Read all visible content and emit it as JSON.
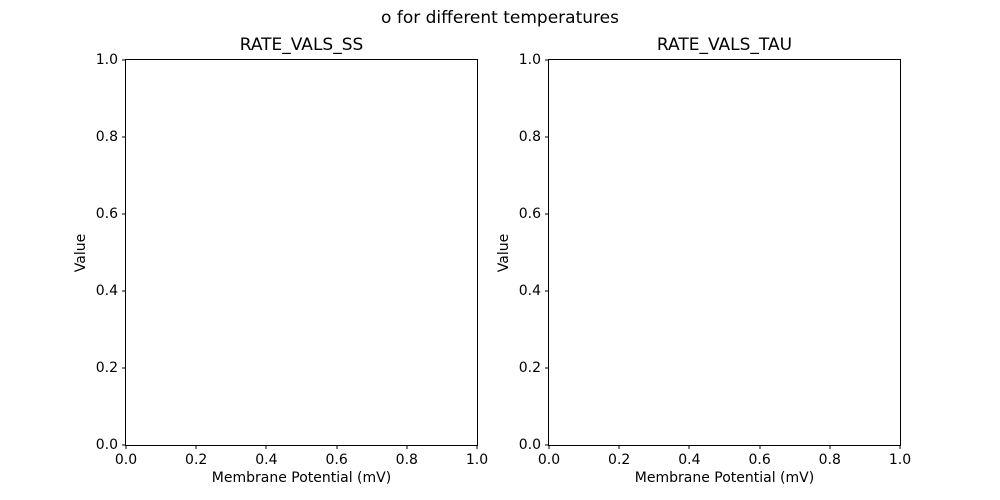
{
  "figure": {
    "suptitle": "o for different temperatures"
  },
  "colors": {
    "background": "#ffffff",
    "text": "#000000",
    "spine": "#000000"
  },
  "chart_data": [
    {
      "type": "line",
      "title": "RATE_VALS_SS",
      "xlabel": "Membrane Potential (mV)",
      "ylabel": "Value",
      "xlim": [
        0.0,
        1.0
      ],
      "ylim": [
        0.0,
        1.0
      ],
      "xtick_values": [
        0.0,
        0.2,
        0.4,
        0.6,
        0.8,
        1.0
      ],
      "xtick_labels": [
        "0.0",
        "0.2",
        "0.4",
        "0.6",
        "0.8",
        "1.0"
      ],
      "ytick_values": [
        0.0,
        0.2,
        0.4,
        0.6,
        0.8,
        1.0
      ],
      "ytick_labels": [
        "0.0",
        "0.2",
        "0.4",
        "0.6",
        "0.8",
        "1.0"
      ],
      "grid": false,
      "legend": null,
      "series": []
    },
    {
      "type": "line",
      "title": "RATE_VALS_TAU",
      "xlabel": "Membrane Potential (mV)",
      "ylabel": "Value",
      "xlim": [
        0.0,
        1.0
      ],
      "ylim": [
        0.0,
        1.0
      ],
      "xtick_values": [
        0.0,
        0.2,
        0.4,
        0.6,
        0.8,
        1.0
      ],
      "xtick_labels": [
        "0.0",
        "0.2",
        "0.4",
        "0.6",
        "0.8",
        "1.0"
      ],
      "ytick_values": [
        0.0,
        0.2,
        0.4,
        0.6,
        0.8,
        1.0
      ],
      "ytick_labels": [
        "0.0",
        "0.2",
        "0.4",
        "0.6",
        "0.8",
        "1.0"
      ],
      "grid": false,
      "legend": null,
      "series": []
    }
  ]
}
